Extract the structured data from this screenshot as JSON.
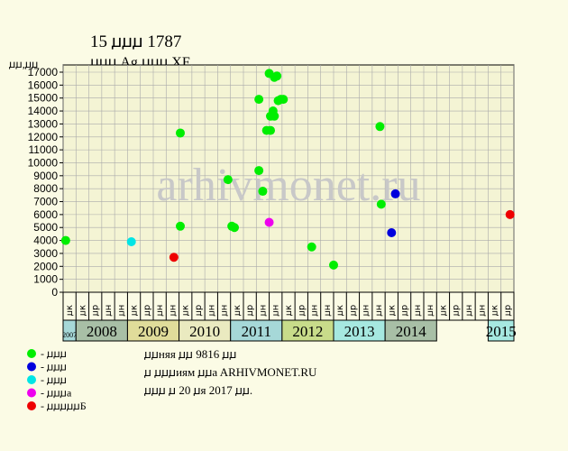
{
  "header": {
    "title": "15 ꙡꙡꙡ 1787",
    "subtitle": "ꙡꙡꙡ Ag,ꙡꙡꙡ XF.",
    "yunit": "ꙡꙡ,ꙡꙡ"
  },
  "watermark": "arhivmonet.ru",
  "legend": [
    {
      "color": "#00ee00",
      "label": "- ꙡꙡꙡ"
    },
    {
      "color": "#0000dd",
      "label": "- ꙡꙡꙡ"
    },
    {
      "color": "#00e5e5",
      "label": "- ꙡꙡꙡ"
    },
    {
      "color": "#ee00ee",
      "label": "- ꙡꙡꙡa"
    },
    {
      "color": "#ee0000",
      "label": "- ꙡꙡꙡꙡꙡБ"
    }
  ],
  "footer": {
    "line1": "ꙡꙡняя ꙡꙡ 9816 ꙡꙡ",
    "line2": "ꙡ ꙡꙡꙡиям ꙡꙡa ARHIVMONET.RU",
    "line3": "ꙡꙡꙡ ꙡ 20 ꙡя 2017 ꙡꙡ."
  },
  "colors": {
    "background": "#fbfbe5",
    "plot_area": "#f4f4d4",
    "grid": "#aaaaaa",
    "watermark": "#c8c8c8"
  },
  "chart_data": {
    "type": "scatter",
    "ylim": [
      0,
      17000
    ],
    "yticks": [
      0,
      1000,
      2000,
      3000,
      4000,
      5000,
      6000,
      7000,
      8000,
      9000,
      10000,
      11000,
      12000,
      13000,
      14000,
      15000,
      16000,
      17000
    ],
    "grid": true,
    "xlim": [
      0,
      35
    ],
    "month_ticks": [
      "ꙡк",
      "ꙡк",
      "ꙡр",
      "ꙡн",
      "ꙡн",
      "ꙡк",
      "ꙡр",
      "ꙡн",
      "ꙡн",
      "ꙡк",
      "ꙡр",
      "ꙡн",
      "ꙡн",
      "ꙡк",
      "ꙡр",
      "ꙡн",
      "ꙡн",
      "ꙡк",
      "ꙡр",
      "ꙡн",
      "ꙡн",
      "ꙡк",
      "ꙡр",
      "ꙡн",
      "ꙡн",
      "ꙡк",
      "ꙡр",
      "ꙡн",
      "ꙡн",
      "ꙡк",
      "ꙡр",
      "ꙡн",
      "ꙡн",
      "ꙡк",
      "ꙡр"
    ],
    "years": [
      {
        "label": "2007",
        "start": 0,
        "end": 1,
        "color": "#a6d8d8"
      },
      {
        "label": "2008",
        "start": 1,
        "end": 5,
        "color": "#a8bfa6"
      },
      {
        "label": "2009",
        "start": 5,
        "end": 9,
        "color": "#e0dc9a"
      },
      {
        "label": "2010",
        "start": 9,
        "end": 13,
        "color": "#eaeac0"
      },
      {
        "label": "2011",
        "start": 13,
        "end": 17,
        "color": "#a6d8d8"
      },
      {
        "label": "2012",
        "start": 17,
        "end": 21,
        "color": "#c8dc8a"
      },
      {
        "label": "2013",
        "start": 21,
        "end": 25,
        "color": "#a6e8e0"
      },
      {
        "label": "2014",
        "start": 25,
        "end": 29,
        "color": "#a8bfa6"
      },
      {
        "label": "2015",
        "start": 33,
        "end": 35,
        "color": "#a6e8e0"
      }
    ],
    "series": [
      {
        "color": "#00ee00",
        "points": [
          [
            0.2,
            4000
          ],
          [
            9.1,
            5100
          ],
          [
            9.1,
            12300
          ],
          [
            12.8,
            8700
          ],
          [
            13.1,
            5100
          ],
          [
            13.3,
            5000
          ],
          [
            15.2,
            14900
          ],
          [
            15.2,
            9400
          ],
          [
            15.5,
            7800
          ],
          [
            15.8,
            12500
          ],
          [
            16.0,
            16900
          ],
          [
            16.1,
            12500
          ],
          [
            16.1,
            13600
          ],
          [
            16.3,
            14000
          ],
          [
            16.4,
            13600
          ],
          [
            16.4,
            16600
          ],
          [
            16.6,
            16700
          ],
          [
            16.7,
            14800
          ],
          [
            16.9,
            14900
          ],
          [
            17.1,
            14900
          ],
          [
            19.3,
            3500
          ],
          [
            21.0,
            2100
          ],
          [
            24.6,
            12800
          ],
          [
            24.7,
            6800
          ]
        ]
      },
      {
        "color": "#0000dd",
        "points": [
          [
            25.5,
            4600
          ],
          [
            25.8,
            7600
          ]
        ]
      },
      {
        "color": "#00e5e5",
        "points": [
          [
            5.3,
            3900
          ]
        ]
      },
      {
        "color": "#ee00ee",
        "points": [
          [
            16.0,
            5400
          ]
        ]
      },
      {
        "color": "#ee0000",
        "points": [
          [
            8.6,
            2700
          ],
          [
            34.7,
            6000
          ]
        ]
      }
    ]
  }
}
